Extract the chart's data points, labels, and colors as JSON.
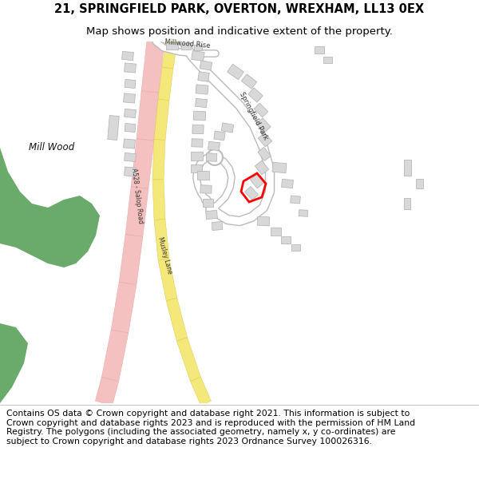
{
  "title_line1": "21, SPRINGFIELD PARK, OVERTON, WREXHAM, LL13 0EX",
  "title_line2": "Map shows position and indicative extent of the property.",
  "copyright_text": "Contains OS data © Crown copyright and database right 2021. This information is subject to Crown copyright and database rights 2023 and is reproduced with the permission of HM Land Registry. The polygons (including the associated geometry, namely x, y co-ordinates) are subject to Crown copyright and database rights 2023 Ordnance Survey 100026316.",
  "bg_color": "#ffffff",
  "map_bg": "#ffffff",
  "woodland_color": "#6aaa6a",
  "road_pink_color": "#f5c0c0",
  "road_pink_border": "#e8a0a0",
  "road_yellow_color": "#f5e87a",
  "road_yellow_border": "#d4c840",
  "building_color": "#d8d8d8",
  "building_border": "#b0b0b0",
  "plot_color": "#ff0000",
  "title_fontsize": 10.5,
  "subtitle_fontsize": 9.5,
  "copyright_fontsize": 7.8
}
